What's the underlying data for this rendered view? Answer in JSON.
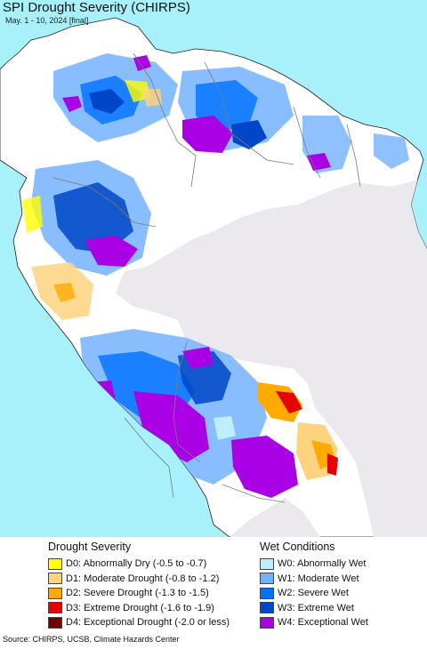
{
  "title": "SPI Drought Severity (CHIRPS)",
  "subtitle": "May. 1 - 10, 2024 [final]",
  "colors": {
    "ocean": "#a8f0fa",
    "land_outside": "#ebe9ee",
    "land_normal": "#ffffff",
    "border": "#7a7a7a",
    "coast": "#222222"
  },
  "legend": {
    "drought": {
      "heading": "Drought Severity",
      "items": [
        {
          "label": "D0: Abnormally Dry (-0.5 to -0.7)",
          "color": "#ffff00"
        },
        {
          "label": "D1: Moderate Drought (-0.8 to -1.2)",
          "color": "#fcd37f"
        },
        {
          "label": "D2: Severe Drought (-1.3 to -1.5)",
          "color": "#ffaa00"
        },
        {
          "label": "D3: Extreme Drought (-1.6 to -1.9)",
          "color": "#e60000"
        },
        {
          "label": "D4: Exceptional Drought (-2.0 or less)",
          "color": "#730000"
        }
      ]
    },
    "wet": {
      "heading": "Wet Conditions",
      "items": [
        {
          "label": "W0: Abnormally Wet",
          "color": "#bfeffe"
        },
        {
          "label": "W1: Moderate Wet",
          "color": "#73b2ff"
        },
        {
          "label": "W2: Severe Wet",
          "color": "#0070ff"
        },
        {
          "label": "W3: Extreme Wet",
          "color": "#0046c8"
        },
        {
          "label": "W4: Exceptional Wet",
          "color": "#a900e6"
        }
      ]
    }
  },
  "source": "Source: CHIRPS, UCSB, Climate Hazards Center"
}
